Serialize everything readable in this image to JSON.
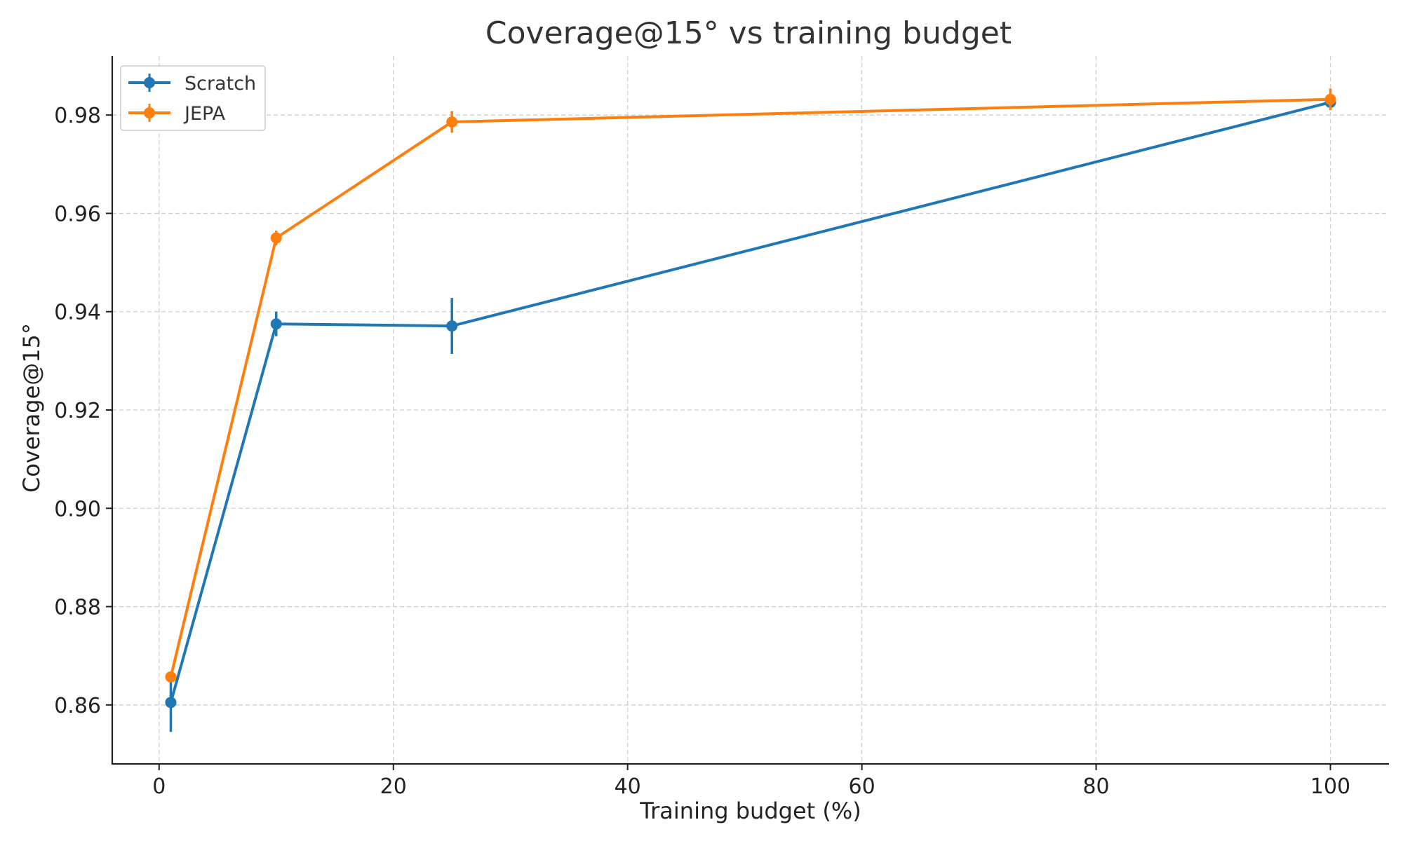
{
  "chart_data": {
    "type": "line",
    "title": "Coverage@15° vs training budget",
    "xlabel": "Training budget (%)",
    "ylabel": "Coverage@15°",
    "xlim": [
      -4,
      105
    ],
    "ylim": [
      0.848,
      0.992
    ],
    "xticks": [
      0,
      20,
      40,
      60,
      80,
      100
    ],
    "yticks": [
      0.86,
      0.88,
      0.9,
      0.92,
      0.94,
      0.96,
      0.98
    ],
    "x": [
      1,
      10,
      25,
      100
    ],
    "grid": true,
    "legend_position": "top-left",
    "series": [
      {
        "name": "Scratch",
        "color": "#1f77b4",
        "values": [
          0.8605,
          0.9375,
          0.9371,
          0.9826
        ],
        "errors": [
          0.006,
          0.0025,
          0.0057,
          0.0009
        ]
      },
      {
        "name": "JEPA",
        "color": "#ff7f0e",
        "values": [
          0.8657,
          0.955,
          0.9786,
          0.9832
        ],
        "errors": [
          0.0008,
          0.0015,
          0.0022,
          0.0022
        ]
      }
    ]
  }
}
